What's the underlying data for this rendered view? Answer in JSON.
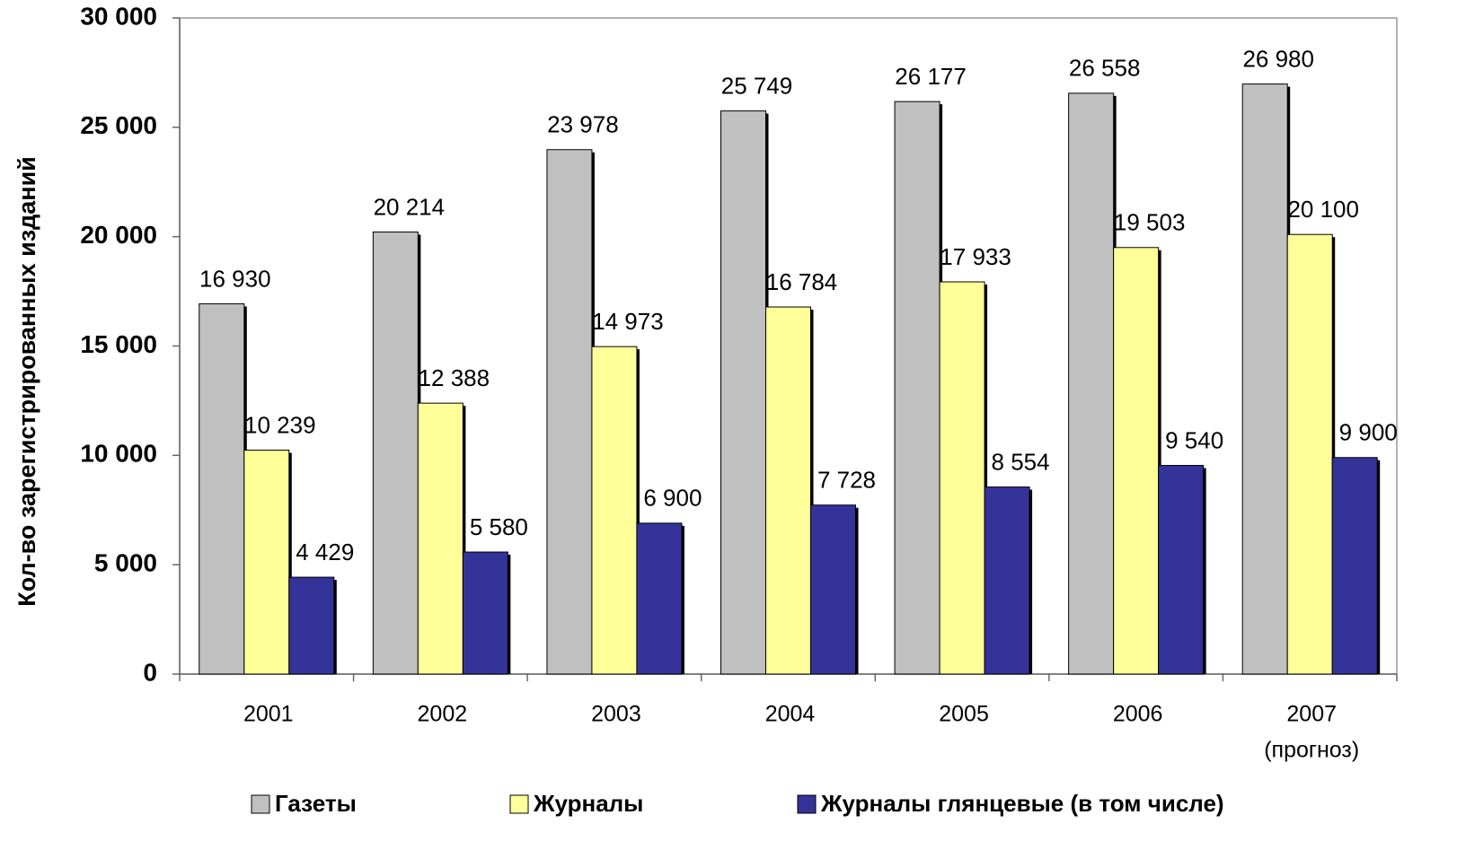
{
  "chart_data": {
    "type": "bar",
    "y_label": "Кол-во зарегистрированных изданий",
    "categories": [
      "2001",
      "2002",
      "2003",
      "2004",
      "2005",
      "2006",
      "2007"
    ],
    "annotations": [
      {
        "category": "2007",
        "text": "(прогноз)"
      }
    ],
    "series": [
      {
        "name": "Газеты",
        "color": "#c0c0c0",
        "values": [
          16930,
          20214,
          23978,
          25749,
          26177,
          26558,
          26980
        ],
        "value_labels": [
          "16 930",
          "20 214",
          "23 978",
          "25 749",
          "26 177",
          "26 558",
          "26 980"
        ]
      },
      {
        "name": "Журналы",
        "color": "#ffff99",
        "values": [
          10239,
          12388,
          14973,
          16784,
          17933,
          19503,
          20100
        ],
        "value_labels": [
          "10 239",
          "12 388",
          "14 973",
          "16 784",
          "17 933",
          "19 503",
          "20 100"
        ]
      },
      {
        "name": "Журналы глянцевые (в том числе)",
        "color": "#333399",
        "values": [
          4429,
          5580,
          6900,
          7728,
          8554,
          9540,
          9900
        ],
        "value_labels": [
          "4 429",
          "5 580",
          "6 900",
          "7 728",
          "8 554",
          "9 540",
          "9 900"
        ]
      }
    ],
    "ylim": [
      0,
      30000
    ],
    "yticks": [
      0,
      {
        "value": 5000,
        "label": "5 000"
      },
      {
        "value": 10000,
        "label": "10 000"
      },
      {
        "value": 15000,
        "label": "15 000"
      },
      {
        "value": 20000,
        "label": "20 000"
      },
      {
        "value": 25000,
        "label": "25 000"
      },
      {
        "value": 30000,
        "label": "30 000"
      }
    ],
    "legend": "bottom"
  }
}
